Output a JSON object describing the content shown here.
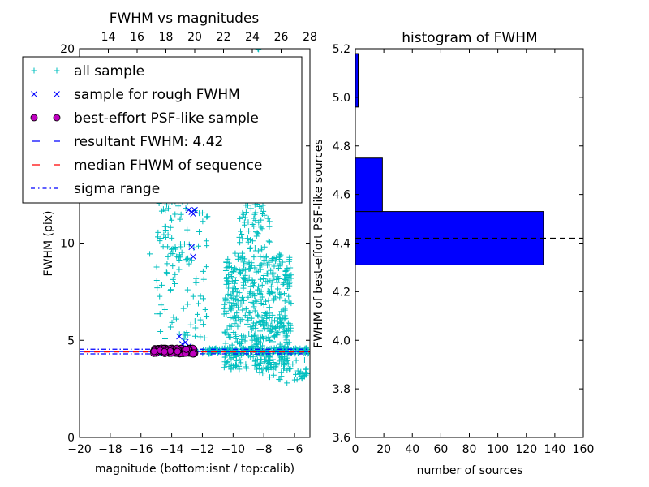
{
  "chart_data": [
    {
      "type": "scatter",
      "title": "FWHM vs magnitudes",
      "xlabel": "magnitude (bottom:isnt / top:calib)",
      "ylabel": "FWHM (pix)",
      "xlim": [
        -20,
        -5
      ],
      "ylim": [
        0,
        20
      ],
      "x_ticks": [
        -20,
        -18,
        -16,
        -14,
        -12,
        -10,
        -8,
        -6
      ],
      "x_tick_labels": [
        "−20",
        "−18",
        "−16",
        "−14",
        "−12",
        "−10",
        "−8",
        "−6"
      ],
      "top_xlim": [
        12,
        28
      ],
      "top_ticks": [
        14,
        16,
        18,
        20,
        22,
        24,
        26,
        28
      ],
      "y_ticks": [
        0,
        5,
        10,
        15,
        20
      ],
      "y_tick_labels": [
        "0",
        "5",
        "10",
        "15",
        "20"
      ],
      "legend_placement": "top-left",
      "grid": false,
      "series": [
        {
          "name": "all sample",
          "marker": "+",
          "color": "#00bfbf",
          "clusters": [
            {
              "x": [
                -15.0,
                -12.4
              ],
              "y": [
                4.3,
                4.6
              ],
              "n": 180
            },
            {
              "x": [
                -15.0,
                -11.6
              ],
              "y": [
                5.0,
                15.0
              ],
              "n": 140
            },
            {
              "x": [
                -10.6,
                -6.2
              ],
              "y": [
                3.5,
                9.5
              ],
              "n": 520
            },
            {
              "x": [
                -9.6,
                -7.6
              ],
              "y": [
                9.5,
                15.5
              ],
              "n": 160
            },
            {
              "x": [
                -9.0,
                -7.8
              ],
              "y": [
                15.5,
                20.0
              ],
              "n": 40
            },
            {
              "x": [
                -12.0,
                -5.0
              ],
              "y": [
                4.3,
                4.6
              ],
              "n": 150
            },
            {
              "x": [
                -8.5,
                -5.2
              ],
              "y": [
                2.8,
                4.2
              ],
              "n": 50
            },
            {
              "x": [
                -15.8,
                -13.0
              ],
              "y": [
                9.0,
                14.0
              ],
              "n": 30
            }
          ]
        },
        {
          "name": "sample for rough FWHM",
          "marker": "x",
          "color": "#0000ff",
          "points": [
            [
              -12.9,
              11.7
            ],
            [
              -12.7,
              11.6
            ],
            [
              -12.5,
              11.7
            ],
            [
              -12.6,
              11.5
            ],
            [
              -12.7,
              9.8
            ],
            [
              -12.6,
              9.3
            ],
            [
              -13.5,
              5.2
            ],
            [
              -13.1,
              4.9
            ],
            [
              -12.9,
              4.7
            ],
            [
              -13.3,
              4.8
            ]
          ]
        },
        {
          "name": "best-effort PSF-like sample",
          "marker": "o",
          "color": "#bf00bf",
          "cluster": {
            "x": [
              -15.2,
              -12.5
            ],
            "y": [
              4.3,
              4.6
            ],
            "n": 150
          }
        }
      ],
      "lines": [
        {
          "name": "resultant FWHM: 4.42",
          "y": 4.42,
          "style": "dashed",
          "color": "#0000ff"
        },
        {
          "name": "median FHWM of sequence",
          "y": 4.4,
          "style": "dashed",
          "color": "#ff0000"
        },
        {
          "name": "sigma range",
          "y": [
            4.3,
            4.54
          ],
          "style": "dashdot",
          "color": "#0000ff"
        }
      ]
    },
    {
      "type": "bar",
      "orientation": "horizontal",
      "title": "histogram of FWHM",
      "xlabel": "number of sources",
      "ylabel": "FWHM of best-effort PSF-like sources",
      "xlim": [
        0,
        160
      ],
      "ylim": [
        3.6,
        5.2
      ],
      "x_ticks": [
        0,
        20,
        40,
        60,
        80,
        100,
        120,
        140,
        160
      ],
      "x_tick_labels": [
        "0",
        "20",
        "40",
        "60",
        "80",
        "100",
        "120",
        "140",
        "160"
      ],
      "y_ticks": [
        3.6,
        3.8,
        4.0,
        4.2,
        4.4,
        4.6,
        4.8,
        5.0,
        5.2
      ],
      "y_tick_labels": [
        "3.6",
        "3.8",
        "4.0",
        "4.2",
        "4.4",
        "4.6",
        "4.8",
        "5.0",
        "5.2"
      ],
      "bin_color": "#0000ff",
      "bins": [
        {
          "y0": 4.31,
          "y1": 4.53,
          "count": 132
        },
        {
          "y0": 4.53,
          "y1": 4.75,
          "count": 19
        },
        {
          "y0": 4.96,
          "y1": 5.18,
          "count": 2
        }
      ],
      "reference_line": {
        "y": 4.42,
        "style": "dashed",
        "color": "#000000"
      }
    }
  ]
}
